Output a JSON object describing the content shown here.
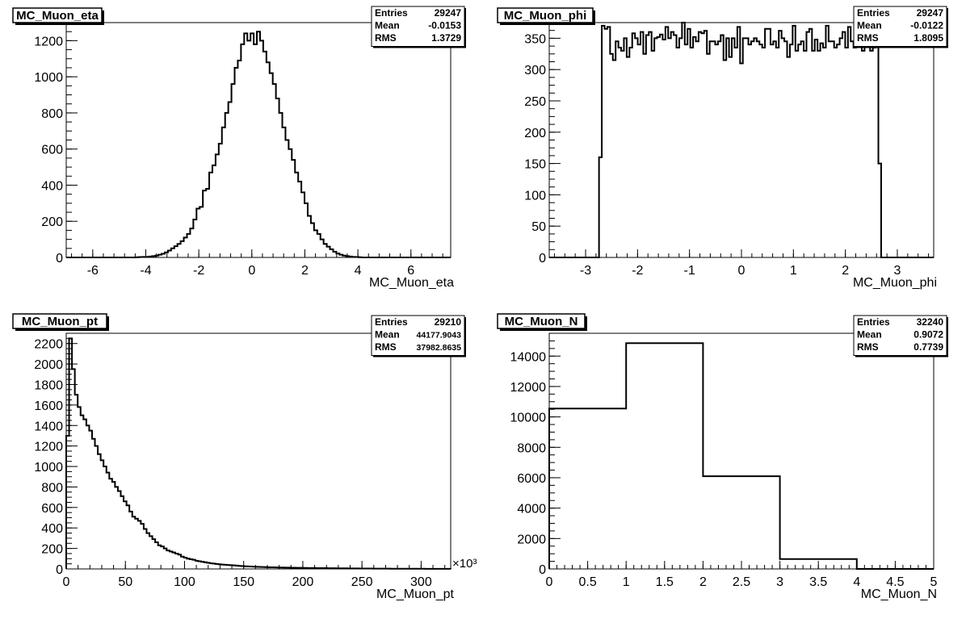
{
  "chart_data": [
    {
      "type": "histogram",
      "title": "MC_Muon_eta",
      "xlabel": "MC_Muon_eta",
      "stats": [
        {
          "label": "Entries",
          "value": "29247"
        },
        {
          "label": "Mean",
          "value": "-0.0153"
        },
        {
          "label": "RMS",
          "value": "1.3729"
        }
      ],
      "xlim": [
        -7,
        7.5
      ],
      "ylim": [
        0,
        1300
      ],
      "xticks": [
        -6,
        -4,
        -2,
        0,
        2,
        4,
        6
      ],
      "yticks": [
        0,
        200,
        400,
        600,
        800,
        1000,
        1200
      ],
      "bin_edges_range": [
        -7,
        7.5
      ],
      "values": [
        0,
        0,
        0,
        0,
        0,
        0,
        0,
        0,
        0,
        0,
        0,
        0,
        0,
        0,
        0,
        0,
        0,
        0,
        0,
        0,
        0,
        0,
        1,
        2,
        3,
        3,
        5,
        7,
        10,
        15,
        20,
        28,
        38,
        50,
        62,
        75,
        90,
        110,
        130,
        160,
        210,
        270,
        280,
        370,
        380,
        470,
        510,
        570,
        630,
        720,
        800,
        860,
        960,
        1050,
        1090,
        1180,
        1240,
        1200,
        1240,
        1180,
        1250,
        1200,
        1140,
        1080,
        1020,
        960,
        880,
        800,
        720,
        650,
        600,
        540,
        470,
        420,
        360,
        300,
        230,
        190,
        150,
        130,
        100,
        75,
        60,
        45,
        32,
        22,
        15,
        10,
        7,
        5,
        3,
        2,
        1,
        0,
        0,
        0,
        0,
        0,
        0,
        0,
        0,
        0,
        0,
        0,
        0,
        0,
        0,
        0,
        0,
        0,
        0,
        0,
        0,
        0,
        0,
        0,
        0,
        0,
        0,
        0,
        0
      ]
    },
    {
      "type": "histogram",
      "title": "MC_Muon_phi",
      "xlabel": "MC_Muon_phi",
      "stats": [
        {
          "label": "Entries",
          "value": "29247"
        },
        {
          "label": "Mean",
          "value": "-0.0122"
        },
        {
          "label": "RMS",
          "value": "1.8095"
        }
      ],
      "xlim": [
        -3.7,
        3.7
      ],
      "ylim": [
        0,
        375
      ],
      "xticks": [
        -3,
        -2,
        -1,
        0,
        1,
        2,
        3
      ],
      "yticks": [
        0,
        50,
        100,
        150,
        200,
        250,
        300,
        350
      ],
      "bin_edges_range": [
        -3.7,
        3.7
      ],
      "values": [
        0,
        0,
        0,
        0,
        0,
        0,
        0,
        0,
        0,
        0,
        0,
        0,
        0,
        0,
        0,
        0,
        0,
        0,
        160,
        370,
        365,
        368,
        325,
        315,
        345,
        335,
        330,
        350,
        320,
        335,
        358,
        350,
        340,
        360,
        325,
        355,
        360,
        330,
        350,
        352,
        356,
        348,
        368,
        350,
        360,
        355,
        335,
        350,
        378,
        340,
        365,
        335,
        352,
        345,
        360,
        358,
        362,
        325,
        345,
        345,
        340,
        345,
        355,
        315,
        350,
        320,
        350,
        335,
        368,
        310,
        350,
        350,
        340,
        345,
        350,
        345,
        340,
        335,
        365,
        365,
        340,
        345,
        335,
        362,
        350,
        345,
        320,
        340,
        370,
        330,
        340,
        345,
        330,
        360,
        365,
        330,
        348,
        330,
        342,
        335,
        370,
        345,
        345,
        335,
        340,
        350,
        360,
        335,
        368,
        345,
        335,
        340,
        345,
        330,
        350,
        340,
        330,
        335,
        340,
        150,
        0,
        0,
        0,
        0,
        0,
        0,
        0,
        0,
        0,
        0,
        0,
        0,
        0,
        0,
        0,
        0,
        0,
        0,
        0
      ]
    },
    {
      "type": "histogram",
      "title": "MC_Muon_pt",
      "xlabel": "MC_Muon_pt",
      "x_multiplier": "×10³",
      "stats": [
        {
          "label": "Entries",
          "value": "29210"
        },
        {
          "label": "Mean",
          "value": "44177.9043"
        },
        {
          "label": "RMS",
          "value": "37982.8635"
        }
      ],
      "xlim": [
        0,
        325
      ],
      "ylim": [
        0,
        2300
      ],
      "xticks": [
        0,
        50,
        100,
        150,
        200,
        250,
        300
      ],
      "yticks": [
        0,
        200,
        400,
        600,
        800,
        1000,
        1200,
        1400,
        1600,
        1800,
        2000,
        2200
      ],
      "bin_edges_range": [
        0,
        325
      ],
      "values": [
        1300,
        2250,
        1950,
        1700,
        1580,
        1500,
        1460,
        1400,
        1350,
        1270,
        1200,
        1120,
        1060,
        1000,
        940,
        880,
        850,
        800,
        760,
        710,
        660,
        620,
        560,
        510,
        490,
        470,
        440,
        390,
        350,
        320,
        290,
        260,
        230,
        220,
        200,
        180,
        170,
        160,
        150,
        140,
        120,
        110,
        100,
        95,
        90,
        80,
        75,
        70,
        65,
        60,
        55,
        52,
        48,
        45,
        42,
        40,
        38,
        36,
        34,
        32,
        30,
        28,
        26,
        25,
        24,
        22,
        21,
        20,
        19,
        18,
        17,
        16,
        16,
        15,
        14,
        14,
        13,
        13,
        12,
        12,
        11,
        11,
        10,
        10,
        9,
        9,
        9,
        8,
        8,
        8,
        8,
        7,
        7,
        7,
        6,
        6,
        6,
        6,
        5,
        5,
        5,
        5,
        4,
        4,
        4,
        4,
        4,
        3,
        3,
        3,
        3,
        3,
        3,
        2,
        2,
        2,
        2,
        2,
        2,
        2,
        2,
        2,
        2,
        2,
        2,
        1,
        1,
        1,
        1,
        1,
        1,
        1,
        1,
        1
      ]
    },
    {
      "type": "histogram",
      "title": "MC_Muon_N",
      "xlabel": "MC_Muon_N",
      "stats": [
        {
          "label": "Entries",
          "value": "32240"
        },
        {
          "label": "Mean",
          "value": "0.9072"
        },
        {
          "label": "RMS",
          "value": "0.7739"
        }
      ],
      "xlim": [
        0,
        5
      ],
      "ylim": [
        0,
        15500
      ],
      "xticks": [
        0,
        0.5,
        1,
        1.5,
        2,
        2.5,
        3,
        3.5,
        4,
        4.5,
        5
      ],
      "yticks": [
        0,
        2000,
        4000,
        6000,
        8000,
        10000,
        12000,
        14000
      ],
      "bin_edges_range": [
        0,
        5
      ],
      "values": [
        10550,
        14850,
        6100,
        650,
        0
      ]
    }
  ]
}
